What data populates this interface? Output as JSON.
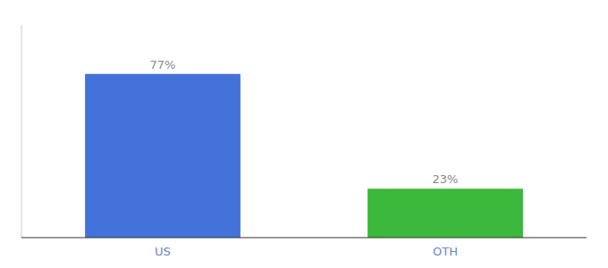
{
  "chart_data": {
    "type": "bar",
    "categories": [
      "US",
      "OTH"
    ],
    "values": [
      77,
      23
    ],
    "value_labels": [
      "77%",
      "23%"
    ],
    "colors": [
      "#4472db",
      "#3cb83c"
    ],
    "ylim": [
      0,
      100
    ],
    "data_labels": true,
    "tick_labels": "x",
    "grid": false
  }
}
